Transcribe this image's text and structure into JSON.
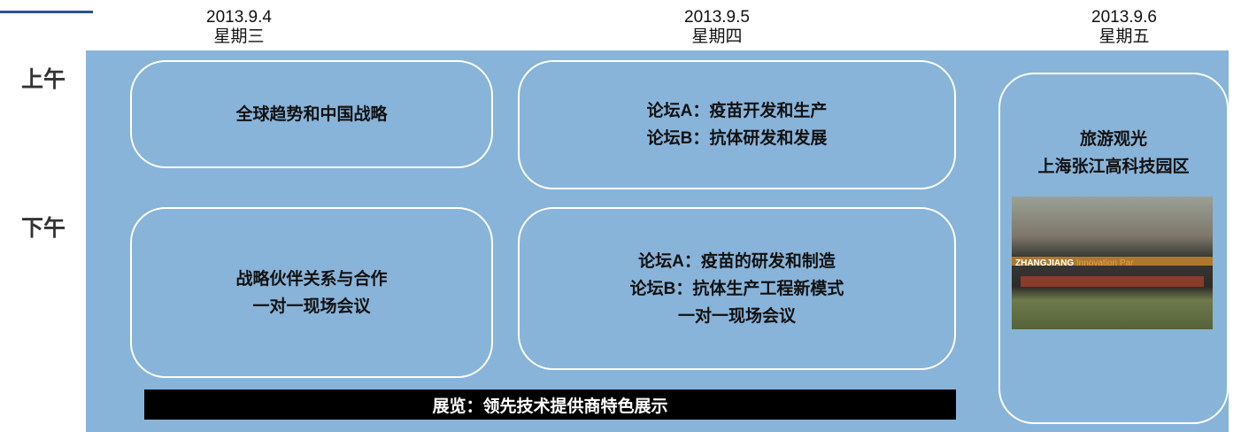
{
  "days": [
    {
      "date": "2013.9.4",
      "weekday": "星期三"
    },
    {
      "date": "2013.9.5",
      "weekday": "星期四"
    },
    {
      "date": "2013.9.6",
      "weekday": "星期五"
    }
  ],
  "rows": [
    "上午",
    "下午"
  ],
  "sessions": [
    {
      "lines": [
        "全球趋势和中国战略"
      ]
    },
    {
      "lines": [
        "论坛A：疫苗开发和生产",
        "论坛B：抗体研发和发展"
      ]
    },
    {
      "lines": [
        "战略伙伴关系与合作",
        "一对一现场会议"
      ]
    },
    {
      "lines": [
        "论坛A：疫苗的研发和制造",
        "论坛B：抗体生产工程新模式",
        "一对一现场会议"
      ]
    },
    {
      "lines": [
        "旅游观光",
        "上海张江高科技园区"
      ]
    }
  ],
  "exhibition": "展览：领先技术提供商特色展示",
  "image": {
    "sign_text": [
      "ZHANGJIANG",
      "Innovation Par"
    ]
  }
}
